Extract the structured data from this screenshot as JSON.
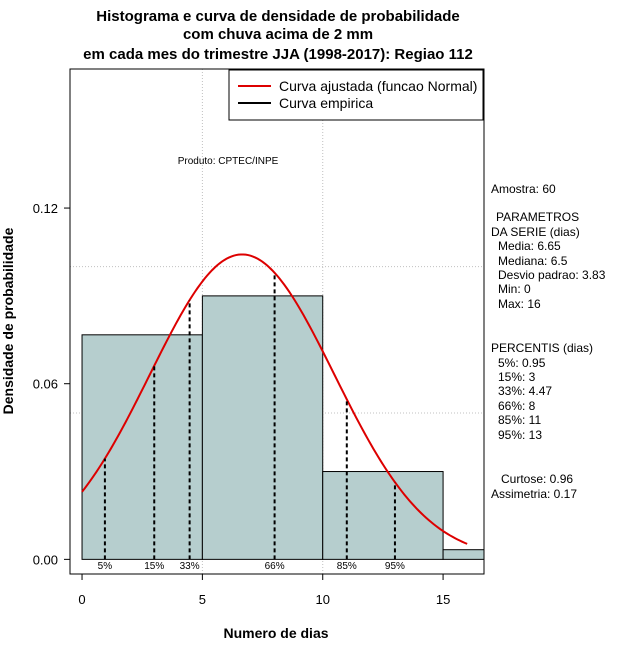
{
  "chart_data": {
    "type": "bar",
    "title": [
      "Histograma e curva de densidade de probabilidade",
      "com chuva acima de 2 mm",
      "em cada mes do trimestre JJA (1998-2017): Regiao 112"
    ],
    "xlabel": "Numero de dias",
    "ylabel": "Densidade de probabilidade",
    "xlim": [
      -0.5,
      16.7
    ],
    "ylim": [
      -0.005,
      0.1675
    ],
    "xticks": [
      "0",
      "5",
      "10",
      "15"
    ],
    "yticks": [
      "0.00",
      "0.06",
      "0.12"
    ],
    "ytick_values": [
      0,
      0.06,
      0.12
    ],
    "grid_y": [
      0.05,
      0.1
    ],
    "grid_x": [
      5,
      10
    ],
    "bins": [
      {
        "from": 0,
        "to": 5,
        "density": 0.0767
      },
      {
        "from": 5,
        "to": 10,
        "density": 0.09
      },
      {
        "from": 10,
        "to": 15,
        "density": 0.03
      },
      {
        "from": 15,
        "to": 16.7,
        "density": 0.0033
      }
    ],
    "normal_curve": {
      "mean": 6.65,
      "sd": 3.83,
      "x_from": 0,
      "x_to": 16
    },
    "percentile_lines": [
      {
        "label": "5%",
        "x": 0.95
      },
      {
        "label": "15%",
        "x": 3
      },
      {
        "label": "33%",
        "x": 4.47
      },
      {
        "label": "66%",
        "x": 8
      },
      {
        "label": "85%",
        "x": 11
      },
      {
        "label": "95%",
        "x": 13
      }
    ],
    "legend": [
      {
        "label": "Curva ajustada (funcao Normal)",
        "color": "#dd0000"
      },
      {
        "label": "Curva empirica",
        "color": "#000000"
      }
    ],
    "annotation": "Produto: CPTEC/INPE",
    "colors": {
      "bar_fill": "#b6cece",
      "curve": "#dd0000",
      "grid": "#c0c0c0"
    }
  },
  "side_panel": {
    "sample": "Amostra: 60",
    "params_title_1": "PARAMETROS",
    "params_title_2": "DA SERIE (dias)",
    "params": [
      "Media: 6.65",
      "Mediana: 6.5",
      "Desvio padrao: 3.83",
      "Min: 0",
      "Max: 16"
    ],
    "percentiles_title": "PERCENTIS (dias)",
    "percentiles": [
      "5%: 0.95",
      "15%: 3",
      "33%: 4.47",
      "66%: 8",
      "85%: 11",
      "95%: 13"
    ],
    "kurtosis": "Curtose: 0.96",
    "skewness": "Assimetria: 0.17"
  }
}
